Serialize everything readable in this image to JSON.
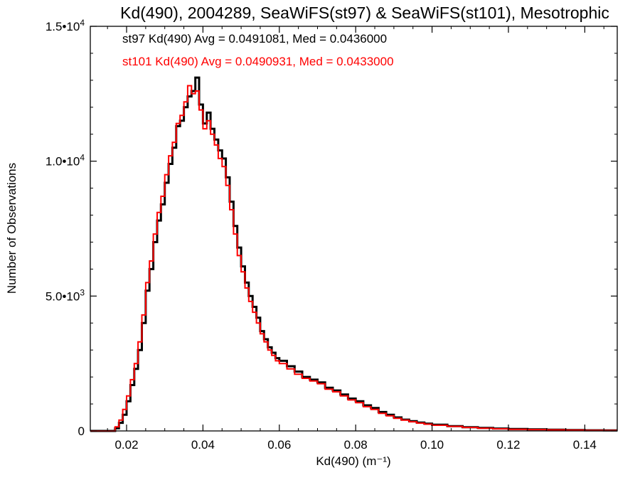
{
  "chart_data": {
    "type": "step-histogram",
    "title": "Kd(490), 2004289, SeaWiFS(st97) & SeaWiFS(st101), Mesotrophic",
    "xlabel": "Kd(490) (m⁻¹)",
    "ylabel": "Number of Observations",
    "xlim": [
      0.0105,
      0.1485
    ],
    "ylim": [
      0,
      15000
    ],
    "x_ticks": [
      0.02,
      0.04,
      0.06,
      0.08,
      0.1,
      0.12,
      0.14
    ],
    "x_tick_labels": [
      "0.02",
      "0.04",
      "0.06",
      "0.08",
      "0.10",
      "0.12",
      "0.14"
    ],
    "y_ticks": [
      {
        "value": 0,
        "mantissa": "0",
        "exponent": ""
      },
      {
        "value": 5000,
        "mantissa": "5.0•3",
        "exponent": ""
      },
      {
        "value": 10000,
        "mantissa": "1.0•10",
        "exponent": "4"
      },
      {
        "value": 15000,
        "mantissa": "1.5•10",
        "exponent": "4"
      }
    ],
    "grid": false,
    "legend_position": "top-left",
    "series": [
      {
        "name": "st97 Kd(490) Avg = 0.0491081, Med = 0.0436000",
        "color": "#000000",
        "x": [
          0.01,
          0.016,
          0.017,
          0.018,
          0.019,
          0.02,
          0.021,
          0.022,
          0.023,
          0.024,
          0.025,
          0.026,
          0.027,
          0.028,
          0.029,
          0.03,
          0.031,
          0.032,
          0.033,
          0.034,
          0.035,
          0.036,
          0.037,
          0.038,
          0.039,
          0.04,
          0.041,
          0.042,
          0.043,
          0.044,
          0.045,
          0.046,
          0.047,
          0.048,
          0.049,
          0.05,
          0.051,
          0.052,
          0.053,
          0.054,
          0.055,
          0.056,
          0.057,
          0.058,
          0.059,
          0.06,
          0.062,
          0.064,
          0.066,
          0.068,
          0.07,
          0.072,
          0.074,
          0.076,
          0.078,
          0.08,
          0.082,
          0.084,
          0.086,
          0.088,
          0.09,
          0.092,
          0.094,
          0.096,
          0.098,
          0.1,
          0.104,
          0.108,
          0.112,
          0.116,
          0.12,
          0.125,
          0.13,
          0.135,
          0.14,
          0.145
        ],
        "values": [
          0,
          0,
          100,
          300,
          600,
          1100,
          1700,
          2300,
          3000,
          4000,
          5200,
          6000,
          7000,
          7800,
          8400,
          9200,
          9900,
          10500,
          11300,
          11500,
          12000,
          12400,
          12600,
          13100,
          12100,
          11400,
          11800,
          11200,
          10800,
          10400,
          10100,
          9400,
          8500,
          7600,
          6800,
          6100,
          5500,
          5000,
          4600,
          4200,
          3700,
          3400,
          3100,
          2900,
          2700,
          2600,
          2400,
          2200,
          2000,
          1900,
          1800,
          1600,
          1500,
          1350,
          1200,
          1100,
          950,
          850,
          700,
          600,
          500,
          420,
          360,
          310,
          270,
          230,
          180,
          140,
          110,
          90,
          70,
          60,
          45,
          35,
          25,
          18
        ]
      },
      {
        "name": "st101 Kd(490) Avg = 0.0490931, Med = 0.0433000",
        "color": "#ff0000",
        "x": [
          0.01,
          0.016,
          0.017,
          0.018,
          0.019,
          0.02,
          0.021,
          0.022,
          0.023,
          0.024,
          0.025,
          0.026,
          0.027,
          0.028,
          0.029,
          0.03,
          0.031,
          0.032,
          0.033,
          0.034,
          0.035,
          0.036,
          0.037,
          0.038,
          0.039,
          0.04,
          0.041,
          0.042,
          0.043,
          0.044,
          0.045,
          0.046,
          0.047,
          0.048,
          0.049,
          0.05,
          0.051,
          0.052,
          0.053,
          0.054,
          0.055,
          0.056,
          0.057,
          0.058,
          0.059,
          0.06,
          0.062,
          0.064,
          0.066,
          0.068,
          0.07,
          0.072,
          0.074,
          0.076,
          0.078,
          0.08,
          0.082,
          0.084,
          0.086,
          0.088,
          0.09,
          0.092,
          0.094,
          0.096,
          0.098,
          0.1,
          0.104,
          0.108,
          0.112,
          0.116,
          0.12,
          0.125,
          0.13,
          0.135,
          0.14,
          0.145
        ],
        "values": [
          0,
          0,
          150,
          400,
          800,
          1300,
          1900,
          2500,
          3300,
          4300,
          5500,
          6300,
          7300,
          8100,
          8700,
          9500,
          10200,
          10700,
          11400,
          11700,
          12200,
          12800,
          12500,
          12600,
          11900,
          11200,
          11500,
          11000,
          10600,
          10100,
          9800,
          9100,
          8200,
          7300,
          6500,
          5900,
          5300,
          4800,
          4400,
          4000,
          3600,
          3300,
          3000,
          2800,
          2600,
          2500,
          2300,
          2100,
          1950,
          1850,
          1750,
          1550,
          1450,
          1300,
          1150,
          1050,
          900,
          800,
          650,
          560,
          470,
          400,
          340,
          290,
          250,
          210,
          170,
          130,
          100,
          80,
          60,
          50,
          40,
          30,
          20,
          15
        ]
      }
    ]
  }
}
